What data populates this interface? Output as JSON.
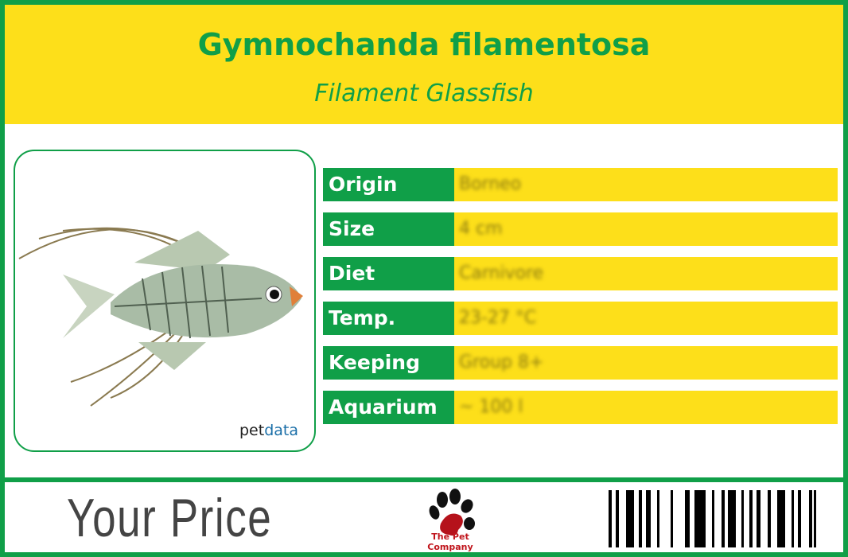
{
  "header": {
    "title": "Gymnochanda filamentosa",
    "subtitle": "Filament Glassfish"
  },
  "photo": {
    "watermark_a": "pet",
    "watermark_b": "data"
  },
  "facts": [
    {
      "label": "Origin",
      "value": "Borneo"
    },
    {
      "label": "Size",
      "value": "4 cm"
    },
    {
      "label": "Diet",
      "value": "Carnivore"
    },
    {
      "label": "Temp.",
      "value": "23-27 °C"
    },
    {
      "label": "Keeping",
      "value": "Group 8+"
    },
    {
      "label": "Aquarium",
      "value": "~ 100 l"
    }
  ],
  "footer": {
    "price_label": "Your Price",
    "brand": "The Pet Company"
  },
  "colors": {
    "green": "#109f48",
    "yellow": "#fddf1a",
    "paw_red": "#b5121b"
  }
}
